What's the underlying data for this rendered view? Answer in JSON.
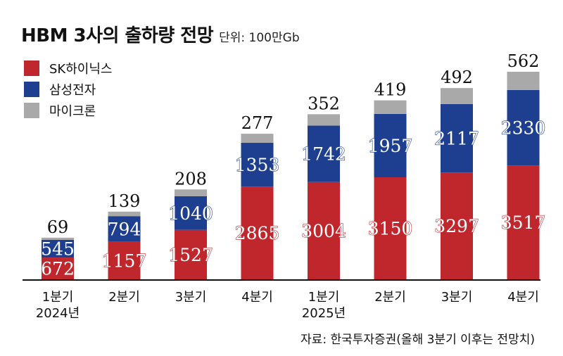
{
  "title": "HBM 3사의 출하량 전망",
  "unit": "단위: 100만Gb",
  "source": "자료: 한국투자증권(올해 3분기 이후는 전망치)",
  "colors": {
    "sk": "#c0272d",
    "samsung": "#1e3f8f",
    "micron": "#a9a9a9"
  },
  "chart_data": {
    "type": "bar",
    "stacked": true,
    "categories": [
      [
        "1분기",
        "2024년"
      ],
      [
        "2분기"
      ],
      [
        "3분기"
      ],
      [
        "4분기"
      ],
      [
        "1분기",
        "2025년"
      ],
      [
        "2분기"
      ],
      [
        "3분기"
      ],
      [
        "4분기"
      ]
    ],
    "series": [
      {
        "name": "SK하이닉스",
        "values": [
          672,
          1157,
          1527,
          2865,
          3004,
          3150,
          3297,
          3517
        ]
      },
      {
        "name": "삼성전자",
        "values": [
          545,
          794,
          1040,
          1353,
          1742,
          1957,
          2117,
          2330
        ]
      },
      {
        "name": "마이크론",
        "values": [
          69,
          139,
          208,
          277,
          352,
          419,
          492,
          562
        ]
      }
    ],
    "legend_position": "top-left",
    "grid": false
  }
}
